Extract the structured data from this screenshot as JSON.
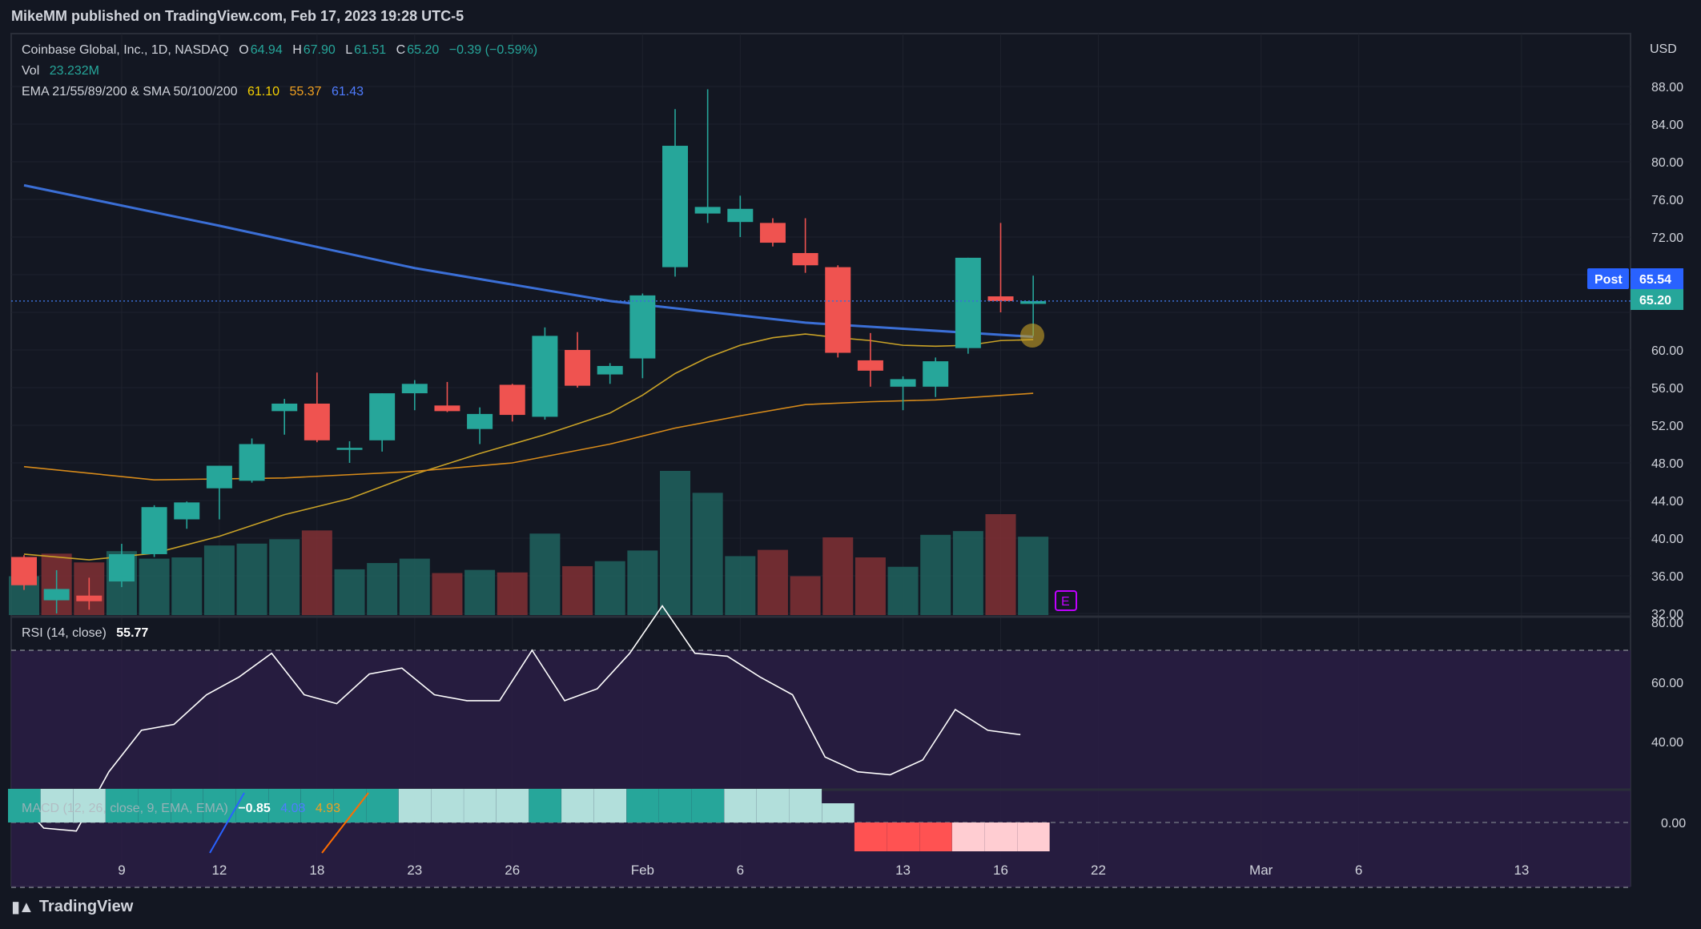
{
  "header": {
    "published": "MikeMM published on TradingView.com, Feb 17, 2023 19:28 UTC-5"
  },
  "footer": {
    "brand": "TradingView"
  },
  "legend": {
    "symbol": "Coinbase Global, Inc., 1D, NASDAQ",
    "o_label": "O",
    "o": "64.94",
    "h_label": "H",
    "h": "67.90",
    "l_label": "L",
    "l": "61.51",
    "c_label": "C",
    "c": "65.20",
    "change": "−0.39 (−0.59%)",
    "vol_label": "Vol",
    "vol": "23.232M",
    "ema_label": "EMA 21/55/89/200 & SMA 50/100/200",
    "ema1": "61.10",
    "ema2": "55.37",
    "ema3": "61.43",
    "rsi_label": "RSI (14, close)",
    "rsi": "55.77",
    "macd_label": "MACD (12, 26, close, 9, EMA, EMA)",
    "macd1": "−0.85",
    "macd2": "4.08",
    "macd3": "4.93"
  },
  "price_axis": {
    "currency": "USD",
    "post_label": "Post",
    "post_price": "65.54",
    "last_price": "65.20",
    "rsi_ticks": [
      "80.00",
      "60.00",
      "40.00"
    ],
    "macd_ticks": [
      "0.00"
    ],
    "e_marker": "E"
  },
  "colors": {
    "up": "#26a69a",
    "down": "#ef5350",
    "bg": "#131722",
    "sma": "#3b6fd6",
    "ema21": "#c9a227",
    "ema55": "#d68a1a",
    "rsi": "#ffffff"
  },
  "chart_data": [
    {
      "type": "candlestick",
      "name": "price",
      "ylim": [
        32,
        90
      ],
      "yticks": [
        32,
        36,
        40,
        44,
        48,
        52,
        56,
        60,
        64,
        68,
        72,
        76,
        80,
        84,
        88
      ],
      "xticks": [
        {
          "label": "9",
          "index": 3
        },
        {
          "label": "12",
          "index": 6
        },
        {
          "label": "18",
          "index": 9
        },
        {
          "label": "23",
          "index": 12
        },
        {
          "label": "26",
          "index": 15
        },
        {
          "label": "Feb",
          "index": 19
        },
        {
          "label": "6",
          "index": 22
        },
        {
          "label": "13",
          "index": 27
        },
        {
          "label": "16",
          "index": 30
        },
        {
          "label": "22",
          "index": 33
        },
        {
          "label": "Mar",
          "index": 38
        },
        {
          "label": "6",
          "index": 41
        },
        {
          "label": "13",
          "index": 46
        }
      ],
      "candles": [
        {
          "o": 38.0,
          "h": 38.2,
          "l": 34.5,
          "c": 35.0
        },
        {
          "o": 33.4,
          "h": 36.6,
          "l": 32.0,
          "c": 34.6
        },
        {
          "o": 33.9,
          "h": 35.8,
          "l": 32.4,
          "c": 33.3
        },
        {
          "o": 35.4,
          "h": 39.4,
          "l": 34.8,
          "c": 38.3
        },
        {
          "o": 38.3,
          "h": 43.5,
          "l": 38.0,
          "c": 43.3
        },
        {
          "o": 42.0,
          "h": 43.9,
          "l": 41.0,
          "c": 43.8
        },
        {
          "o": 45.3,
          "h": 47.7,
          "l": 42.0,
          "c": 47.7
        },
        {
          "o": 46.1,
          "h": 50.6,
          "l": 45.9,
          "c": 50.0
        },
        {
          "o": 53.5,
          "h": 54.8,
          "l": 51.0,
          "c": 54.3
        },
        {
          "o": 54.3,
          "h": 57.6,
          "l": 50.2,
          "c": 50.4
        },
        {
          "o": 49.4,
          "h": 50.3,
          "l": 48.0,
          "c": 49.6
        },
        {
          "o": 50.4,
          "h": 55.4,
          "l": 49.2,
          "c": 55.4
        },
        {
          "o": 55.4,
          "h": 56.8,
          "l": 53.6,
          "c": 56.4
        },
        {
          "o": 54.1,
          "h": 56.6,
          "l": 53.4,
          "c": 53.5
        },
        {
          "o": 51.6,
          "h": 53.9,
          "l": 50.0,
          "c": 53.2
        },
        {
          "o": 56.3,
          "h": 56.4,
          "l": 52.4,
          "c": 53.1
        },
        {
          "o": 52.9,
          "h": 62.4,
          "l": 52.6,
          "c": 61.5
        },
        {
          "o": 60.0,
          "h": 61.9,
          "l": 56.0,
          "c": 56.2
        },
        {
          "o": 57.4,
          "h": 58.6,
          "l": 56.4,
          "c": 58.3
        },
        {
          "o": 59.1,
          "h": 66.0,
          "l": 57.0,
          "c": 65.8
        },
        {
          "o": 68.8,
          "h": 85.6,
          "l": 67.8,
          "c": 81.7
        },
        {
          "o": 74.5,
          "h": 87.7,
          "l": 73.5,
          "c": 75.2
        },
        {
          "o": 73.6,
          "h": 76.4,
          "l": 72.0,
          "c": 75.0
        },
        {
          "o": 73.5,
          "h": 74.0,
          "l": 71.0,
          "c": 71.4
        },
        {
          "o": 70.3,
          "h": 74.0,
          "l": 68.2,
          "c": 69.0
        },
        {
          "o": 68.8,
          "h": 69.0,
          "l": 59.2,
          "c": 59.7
        },
        {
          "o": 58.9,
          "h": 61.8,
          "l": 56.1,
          "c": 57.8
        },
        {
          "o": 56.1,
          "h": 57.2,
          "l": 53.6,
          "c": 56.9
        },
        {
          "o": 56.1,
          "h": 59.2,
          "l": 55.0,
          "c": 58.8
        },
        {
          "o": 60.2,
          "h": 69.8,
          "l": 59.6,
          "c": 69.8
        },
        {
          "o": 65.7,
          "h": 73.5,
          "l": 64.0,
          "c": 65.2
        },
        {
          "o": 64.9,
          "h": 67.9,
          "l": 61.5,
          "c": 65.2
        }
      ],
      "series": [
        {
          "name": "SMA",
          "color": "#3b6fd6",
          "x": [
            0,
            6,
            12,
            18,
            24,
            31
          ],
          "values": [
            77.5,
            73.2,
            68.7,
            65.2,
            62.9,
            61.4
          ]
        },
        {
          "name": "EMA 21",
          "color": "#c9a227",
          "x": [
            0,
            2,
            4,
            6,
            8,
            10,
            12,
            14,
            16,
            18,
            19,
            20,
            21,
            22,
            23,
            24,
            25,
            26,
            27,
            28,
            29,
            30,
            31
          ],
          "values": [
            38.3,
            37.7,
            38.4,
            40.2,
            42.5,
            44.2,
            46.8,
            49.0,
            51.0,
            53.3,
            55.2,
            57.5,
            59.2,
            60.5,
            61.3,
            61.7,
            61.3,
            61.0,
            60.5,
            60.4,
            60.5,
            61.0,
            61.1
          ]
        },
        {
          "name": "EMA 55",
          "color": "#d68a1a",
          "x": [
            0,
            4,
            8,
            12,
            15,
            18,
            20,
            22,
            24,
            26,
            28,
            31
          ],
          "values": [
            47.6,
            46.2,
            46.4,
            47.1,
            48.0,
            50.0,
            51.7,
            53.0,
            54.2,
            54.5,
            54.7,
            55.4
          ]
        }
      ]
    },
    {
      "type": "bar",
      "name": "volume",
      "values": [
        6.2,
        9.8,
        8.4,
        10.2,
        9.0,
        9.2,
        11.1,
        11.4,
        12.1,
        13.5,
        7.3,
        8.3,
        9.0,
        6.7,
        7.2,
        6.8,
        13.0,
        7.8,
        8.6,
        10.3,
        23.0,
        19.5,
        9.4,
        10.4,
        6.2,
        12.4,
        9.2,
        7.7,
        12.8,
        13.4,
        16.1,
        12.5
      ],
      "direction": [
        "up",
        "down",
        "down",
        "up",
        "up",
        "up",
        "up",
        "up",
        "up",
        "down",
        "up",
        "up",
        "up",
        "down",
        "up",
        "down",
        "up",
        "down",
        "up",
        "up",
        "up",
        "up",
        "up",
        "down",
        "down",
        "down",
        "down",
        "up",
        "up",
        "up",
        "down",
        "up"
      ]
    },
    {
      "type": "line",
      "name": "RSI",
      "ylim": [
        23,
        82
      ],
      "upper_band": 70,
      "lower_band": 30,
      "x": [
        0,
        1,
        2,
        3,
        4,
        5,
        6,
        7,
        8,
        9,
        10,
        11,
        12,
        13,
        14,
        15,
        16,
        17,
        18,
        19,
        20,
        21,
        22,
        23,
        24,
        25,
        26,
        27,
        28,
        29,
        30,
        31
      ],
      "values": [
        46,
        40,
        39.5,
        49.5,
        56.5,
        57.5,
        62.5,
        65.5,
        69.5,
        62.5,
        61,
        66,
        67,
        62.5,
        61.5,
        61.5,
        70,
        61.5,
        63.5,
        69.5,
        77.5,
        69.5,
        69,
        65.5,
        62.5,
        52,
        49.5,
        49,
        51.5,
        60,
        56.5,
        55.77
      ]
    },
    {
      "type": "bar",
      "name": "MACD histogram",
      "values": [
        3.5,
        3.5,
        3.5,
        3.5,
        3.5,
        3.5,
        3.5,
        3.5,
        3.5,
        3.5,
        3.5,
        3.5,
        3.5,
        3.5,
        3.5,
        3.5,
        3.5,
        3.5,
        3.5,
        3.5,
        3.5,
        3.5,
        3.5,
        3.5,
        3.5,
        2.0,
        -3.0,
        -3.0,
        -3.0,
        -3.0,
        -3.0,
        -3.0
      ],
      "shade": [
        "dark",
        "light",
        "light",
        "dark",
        "dark",
        "dark",
        "dark",
        "dark",
        "dark",
        "dark",
        "dark",
        "dark",
        "light",
        "light",
        "light",
        "light",
        "dark",
        "light",
        "light",
        "dark",
        "dark",
        "dark",
        "light",
        "light",
        "light",
        "light",
        "down-dark",
        "down-dark",
        "down-dark",
        "down-light",
        "down-light",
        "down-light"
      ]
    }
  ]
}
